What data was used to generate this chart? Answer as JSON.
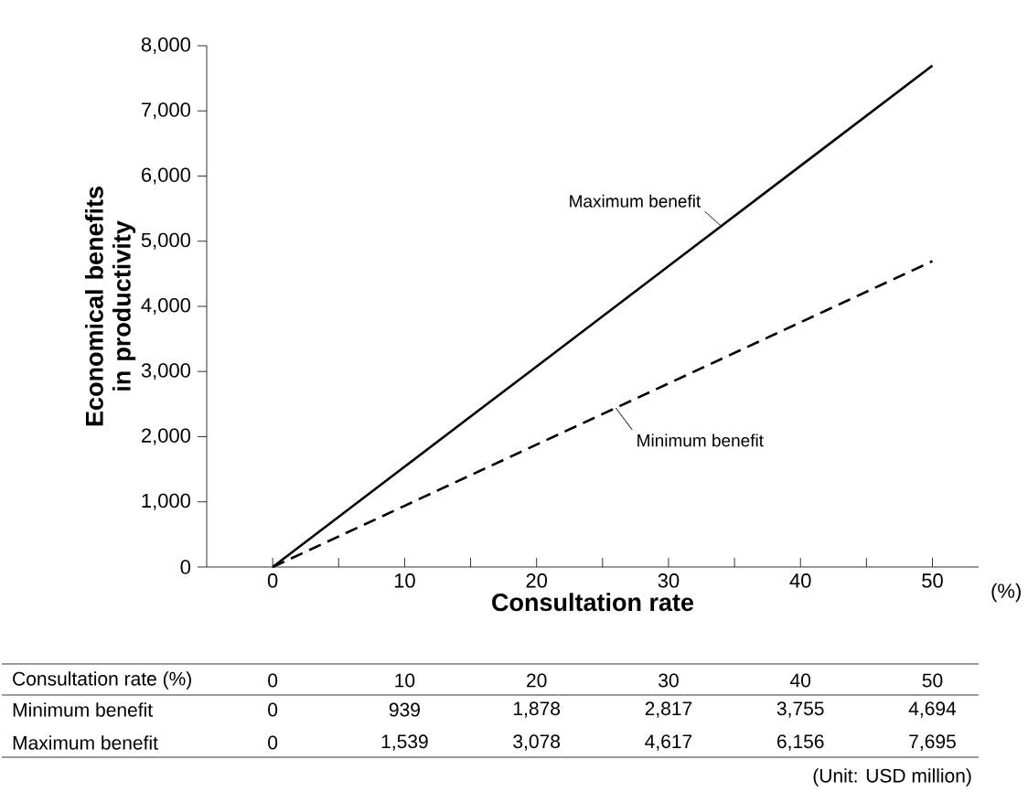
{
  "chart_data": {
    "type": "line",
    "xlabel": "Consultation rate",
    "ylabel": "Economical benefits in productivity",
    "x": [
      0,
      10,
      20,
      30,
      40,
      50
    ],
    "series": [
      {
        "name": "Minimum benefit",
        "color": "#000000",
        "line_style": "dashed",
        "values": [
          0,
          939,
          1878,
          2817,
          3755,
          4694
        ]
      },
      {
        "name": "Maximum benefit",
        "color": "#000000",
        "line_style": "solid",
        "values": [
          0,
          1539,
          3078,
          4617,
          6156,
          7695
        ]
      }
    ],
    "xlim": [
      -5,
      53.5
    ],
    "xticks": [
      0,
      {
        "value": 5,
        "label": null
      },
      10,
      {
        "value": 15,
        "label": null
      },
      20,
      {
        "value": 25,
        "label": null
      },
      30,
      {
        "value": 35,
        "label": null
      },
      40,
      {
        "value": 45,
        "label": null
      },
      50
    ],
    "ylim": [
      0,
      8000
    ],
    "yticks": [
      0,
      {
        "value": 1000,
        "label": "1,000"
      },
      {
        "value": 2000,
        "label": "2,000"
      },
      {
        "value": 3000,
        "label": "3,000"
      },
      {
        "value": 4000,
        "label": "4,000"
      },
      {
        "value": 5000,
        "label": "5,000"
      },
      {
        "value": 6000,
        "label": "6,000"
      },
      {
        "value": 7000,
        "label": "7,000"
      },
      {
        "value": 8000,
        "label": "8,000"
      }
    ],
    "marker": "none",
    "annotations": [
      "(%)",
      "Consultation rate (%)",
      "0",
      "10",
      "20",
      "30",
      "40",
      "50",
      "0",
      "939",
      "1,878",
      "2,817",
      "3,755",
      "4,694",
      "0",
      "1,539",
      "3,078",
      "4,617",
      "6,156",
      "7,695",
      "(Unit: USD million)"
    ]
  }
}
